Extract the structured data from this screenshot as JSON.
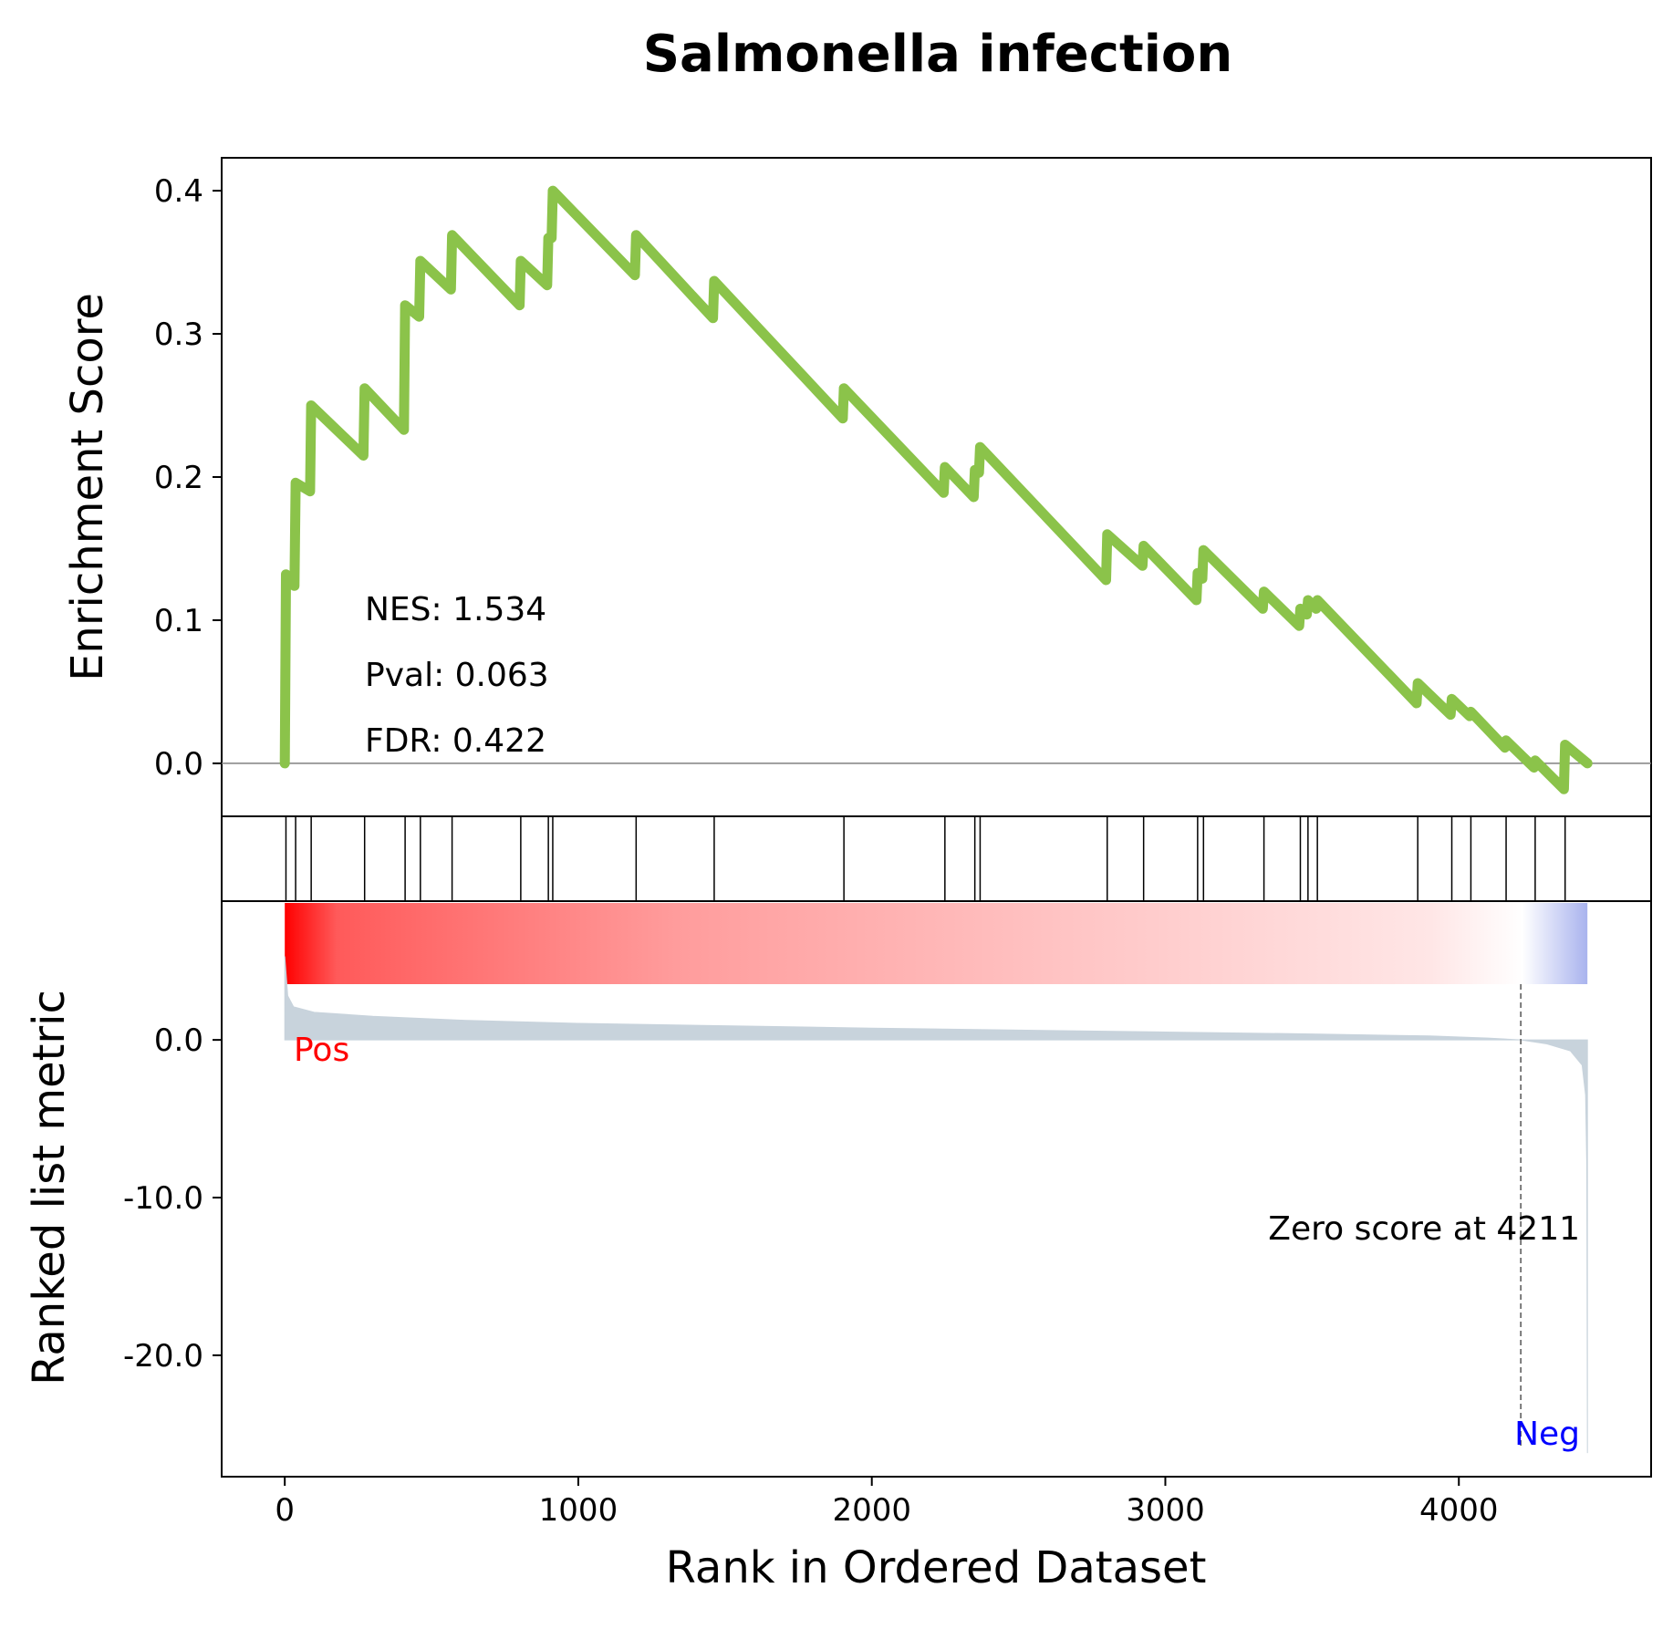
{
  "chart_data": {
    "type": "line",
    "title": "Salmonella infection",
    "xlabel": "Rank in Ordered Dataset",
    "es_panel": {
      "ylabel": "Enrichment Score",
      "ylim": [
        -0.037,
        0.423
      ],
      "yticks": [
        0.0,
        0.1,
        0.2,
        0.3,
        0.4
      ],
      "ytick_labels": [
        "0.0",
        "0.1",
        "0.2",
        "0.3",
        "0.4"
      ],
      "line_color": "#8bc34a",
      "stats": [
        "NES: 1.534",
        "Pval: 0.063",
        "FDR: 0.422"
      ],
      "points": [
        [
          0,
          0.0
        ],
        [
          4,
          0.132
        ],
        [
          33,
          0.124
        ],
        [
          37,
          0.196
        ],
        [
          86,
          0.19
        ],
        [
          90,
          0.25
        ],
        [
          268,
          0.215
        ],
        [
          272,
          0.262
        ],
        [
          406,
          0.233
        ],
        [
          410,
          0.32
        ],
        [
          458,
          0.312
        ],
        [
          462,
          0.351
        ],
        [
          566,
          0.331
        ],
        [
          570,
          0.369
        ],
        [
          800,
          0.32
        ],
        [
          804,
          0.351
        ],
        [
          894,
          0.334
        ],
        [
          898,
          0.367
        ],
        [
          909,
          0.367
        ],
        [
          913,
          0.4
        ],
        [
          1193,
          0.341
        ],
        [
          1197,
          0.369
        ],
        [
          1459,
          0.311
        ],
        [
          1463,
          0.337
        ],
        [
          1901,
          0.241
        ],
        [
          1905,
          0.262
        ],
        [
          2245,
          0.189
        ],
        [
          2249,
          0.207
        ],
        [
          2347,
          0.186
        ],
        [
          2351,
          0.205
        ],
        [
          2365,
          0.203
        ],
        [
          2369,
          0.221
        ],
        [
          2798,
          0.128
        ],
        [
          2802,
          0.16
        ],
        [
          2922,
          0.138
        ],
        [
          2926,
          0.152
        ],
        [
          3106,
          0.114
        ],
        [
          3110,
          0.133
        ],
        [
          3126,
          0.129
        ],
        [
          3130,
          0.149
        ],
        [
          3332,
          0.108
        ],
        [
          3336,
          0.12
        ],
        [
          3456,
          0.096
        ],
        [
          3460,
          0.108
        ],
        [
          3482,
          0.104
        ],
        [
          3486,
          0.114
        ],
        [
          3514,
          0.108
        ],
        [
          3518,
          0.114
        ],
        [
          3856,
          0.042
        ],
        [
          3860,
          0.056
        ],
        [
          3972,
          0.034
        ],
        [
          3976,
          0.045
        ],
        [
          4037,
          0.033
        ],
        [
          4041,
          0.036
        ],
        [
          4157,
          0.011
        ],
        [
          4161,
          0.016
        ],
        [
          4256,
          -0.003
        ],
        [
          4260,
          0.002
        ],
        [
          4358,
          -0.018
        ],
        [
          4362,
          0.013
        ],
        [
          4438,
          0.0
        ]
      ]
    },
    "hits": [
      4,
      37,
      90,
      272,
      410,
      462,
      570,
      804,
      898,
      913,
      1197,
      1463,
      1905,
      2249,
      2351,
      2369,
      2802,
      2926,
      3110,
      3130,
      3336,
      3460,
      3486,
      3518,
      3860,
      3976,
      4041,
      4161,
      4260,
      4362
    ],
    "rank_panel": {
      "ylabel": "Ranked list metric",
      "ylim": [
        -27.7,
        8.8
      ],
      "yticks": [
        0.0,
        -10.0,
        -20.0
      ],
      "ytick_labels": [
        "0.0",
        "-10.0",
        "-20.0"
      ],
      "fill_color": "#c8d3dc",
      "pos_label": "Pos",
      "neg_label": "Neg",
      "pos_color": "#ff0000",
      "neg_color": "#0000ff",
      "zero_cross": 4211,
      "zero_text": "Zero score at 4211",
      "metric": [
        [
          0,
          5.3
        ],
        [
          10,
          2.8
        ],
        [
          30,
          2.1
        ],
        [
          100,
          1.75
        ],
        [
          300,
          1.5
        ],
        [
          600,
          1.25
        ],
        [
          1000,
          1.05
        ],
        [
          1500,
          0.9
        ],
        [
          2000,
          0.75
        ],
        [
          2500,
          0.62
        ],
        [
          3000,
          0.5
        ],
        [
          3500,
          0.38
        ],
        [
          3900,
          0.25
        ],
        [
          4100,
          0.12
        ],
        [
          4211,
          0.0
        ],
        [
          4300,
          -0.25
        ],
        [
          4380,
          -0.7
        ],
        [
          4420,
          -1.6
        ],
        [
          4432,
          -3.5
        ],
        [
          4436,
          -8.0
        ],
        [
          4438,
          -26.2
        ]
      ]
    },
    "xlim": [
      -215,
      4655
    ],
    "xticks": [
      0,
      1000,
      2000,
      3000,
      4000
    ],
    "xtick_labels": [
      "0",
      "1000",
      "2000",
      "3000",
      "4000"
    ]
  }
}
